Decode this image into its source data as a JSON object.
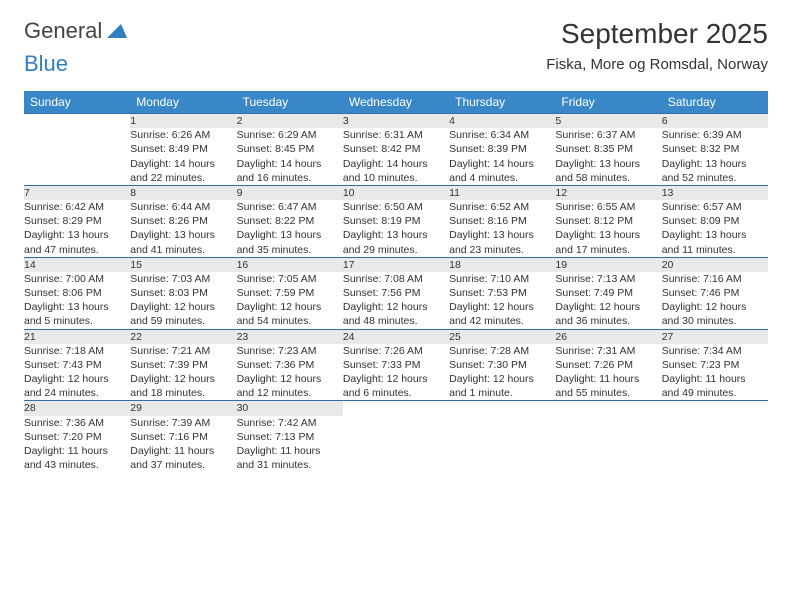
{
  "brand": {
    "word1": "General",
    "word2": "Blue"
  },
  "title": "September 2025",
  "location": "Fiska, More og Romsdal, Norway",
  "colors": {
    "header_bg": "#3a87c8",
    "header_text": "#ffffff",
    "daynum_bg": "#e9e9e9",
    "rule": "#2f6ea8",
    "brand_blue": "#2f7fc1"
  },
  "day_headers": [
    "Sunday",
    "Monday",
    "Tuesday",
    "Wednesday",
    "Thursday",
    "Friday",
    "Saturday"
  ],
  "weeks": [
    {
      "nums": [
        "",
        "1",
        "2",
        "3",
        "4",
        "5",
        "6"
      ],
      "cells": [
        {
          "empty": true
        },
        {
          "sunrise": "Sunrise: 6:26 AM",
          "sunset": "Sunset: 8:49 PM",
          "day1": "Daylight: 14 hours",
          "day2": "and 22 minutes."
        },
        {
          "sunrise": "Sunrise: 6:29 AM",
          "sunset": "Sunset: 8:45 PM",
          "day1": "Daylight: 14 hours",
          "day2": "and 16 minutes."
        },
        {
          "sunrise": "Sunrise: 6:31 AM",
          "sunset": "Sunset: 8:42 PM",
          "day1": "Daylight: 14 hours",
          "day2": "and 10 minutes."
        },
        {
          "sunrise": "Sunrise: 6:34 AM",
          "sunset": "Sunset: 8:39 PM",
          "day1": "Daylight: 14 hours",
          "day2": "and 4 minutes."
        },
        {
          "sunrise": "Sunrise: 6:37 AM",
          "sunset": "Sunset: 8:35 PM",
          "day1": "Daylight: 13 hours",
          "day2": "and 58 minutes."
        },
        {
          "sunrise": "Sunrise: 6:39 AM",
          "sunset": "Sunset: 8:32 PM",
          "day1": "Daylight: 13 hours",
          "day2": "and 52 minutes."
        }
      ]
    },
    {
      "nums": [
        "7",
        "8",
        "9",
        "10",
        "11",
        "12",
        "13"
      ],
      "cells": [
        {
          "sunrise": "Sunrise: 6:42 AM",
          "sunset": "Sunset: 8:29 PM",
          "day1": "Daylight: 13 hours",
          "day2": "and 47 minutes."
        },
        {
          "sunrise": "Sunrise: 6:44 AM",
          "sunset": "Sunset: 8:26 PM",
          "day1": "Daylight: 13 hours",
          "day2": "and 41 minutes."
        },
        {
          "sunrise": "Sunrise: 6:47 AM",
          "sunset": "Sunset: 8:22 PM",
          "day1": "Daylight: 13 hours",
          "day2": "and 35 minutes."
        },
        {
          "sunrise": "Sunrise: 6:50 AM",
          "sunset": "Sunset: 8:19 PM",
          "day1": "Daylight: 13 hours",
          "day2": "and 29 minutes."
        },
        {
          "sunrise": "Sunrise: 6:52 AM",
          "sunset": "Sunset: 8:16 PM",
          "day1": "Daylight: 13 hours",
          "day2": "and 23 minutes."
        },
        {
          "sunrise": "Sunrise: 6:55 AM",
          "sunset": "Sunset: 8:12 PM",
          "day1": "Daylight: 13 hours",
          "day2": "and 17 minutes."
        },
        {
          "sunrise": "Sunrise: 6:57 AM",
          "sunset": "Sunset: 8:09 PM",
          "day1": "Daylight: 13 hours",
          "day2": "and 11 minutes."
        }
      ]
    },
    {
      "nums": [
        "14",
        "15",
        "16",
        "17",
        "18",
        "19",
        "20"
      ],
      "cells": [
        {
          "sunrise": "Sunrise: 7:00 AM",
          "sunset": "Sunset: 8:06 PM",
          "day1": "Daylight: 13 hours",
          "day2": "and 5 minutes."
        },
        {
          "sunrise": "Sunrise: 7:03 AM",
          "sunset": "Sunset: 8:03 PM",
          "day1": "Daylight: 12 hours",
          "day2": "and 59 minutes."
        },
        {
          "sunrise": "Sunrise: 7:05 AM",
          "sunset": "Sunset: 7:59 PM",
          "day1": "Daylight: 12 hours",
          "day2": "and 54 minutes."
        },
        {
          "sunrise": "Sunrise: 7:08 AM",
          "sunset": "Sunset: 7:56 PM",
          "day1": "Daylight: 12 hours",
          "day2": "and 48 minutes."
        },
        {
          "sunrise": "Sunrise: 7:10 AM",
          "sunset": "Sunset: 7:53 PM",
          "day1": "Daylight: 12 hours",
          "day2": "and 42 minutes."
        },
        {
          "sunrise": "Sunrise: 7:13 AM",
          "sunset": "Sunset: 7:49 PM",
          "day1": "Daylight: 12 hours",
          "day2": "and 36 minutes."
        },
        {
          "sunrise": "Sunrise: 7:16 AM",
          "sunset": "Sunset: 7:46 PM",
          "day1": "Daylight: 12 hours",
          "day2": "and 30 minutes."
        }
      ]
    },
    {
      "nums": [
        "21",
        "22",
        "23",
        "24",
        "25",
        "26",
        "27"
      ],
      "cells": [
        {
          "sunrise": "Sunrise: 7:18 AM",
          "sunset": "Sunset: 7:43 PM",
          "day1": "Daylight: 12 hours",
          "day2": "and 24 minutes."
        },
        {
          "sunrise": "Sunrise: 7:21 AM",
          "sunset": "Sunset: 7:39 PM",
          "day1": "Daylight: 12 hours",
          "day2": "and 18 minutes."
        },
        {
          "sunrise": "Sunrise: 7:23 AM",
          "sunset": "Sunset: 7:36 PM",
          "day1": "Daylight: 12 hours",
          "day2": "and 12 minutes."
        },
        {
          "sunrise": "Sunrise: 7:26 AM",
          "sunset": "Sunset: 7:33 PM",
          "day1": "Daylight: 12 hours",
          "day2": "and 6 minutes."
        },
        {
          "sunrise": "Sunrise: 7:28 AM",
          "sunset": "Sunset: 7:30 PM",
          "day1": "Daylight: 12 hours",
          "day2": "and 1 minute."
        },
        {
          "sunrise": "Sunrise: 7:31 AM",
          "sunset": "Sunset: 7:26 PM",
          "day1": "Daylight: 11 hours",
          "day2": "and 55 minutes."
        },
        {
          "sunrise": "Sunrise: 7:34 AM",
          "sunset": "Sunset: 7:23 PM",
          "day1": "Daylight: 11 hours",
          "day2": "and 49 minutes."
        }
      ]
    },
    {
      "nums": [
        "28",
        "29",
        "30",
        "",
        "",
        "",
        ""
      ],
      "cells": [
        {
          "sunrise": "Sunrise: 7:36 AM",
          "sunset": "Sunset: 7:20 PM",
          "day1": "Daylight: 11 hours",
          "day2": "and 43 minutes."
        },
        {
          "sunrise": "Sunrise: 7:39 AM",
          "sunset": "Sunset: 7:16 PM",
          "day1": "Daylight: 11 hours",
          "day2": "and 37 minutes."
        },
        {
          "sunrise": "Sunrise: 7:42 AM",
          "sunset": "Sunset: 7:13 PM",
          "day1": "Daylight: 11 hours",
          "day2": "and 31 minutes."
        },
        {
          "empty": true
        },
        {
          "empty": true
        },
        {
          "empty": true
        },
        {
          "empty": true
        }
      ]
    }
  ]
}
